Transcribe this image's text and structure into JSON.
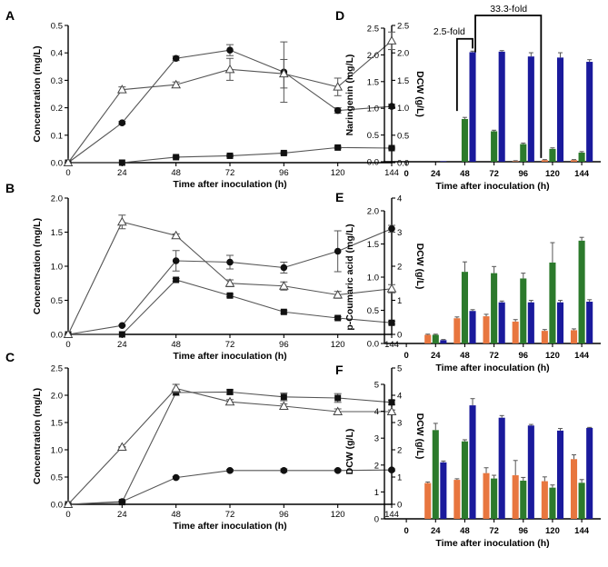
{
  "chart_data": [
    {
      "id": "A",
      "type": "line",
      "panel_label": "A",
      "xlabel": "Time after inoculation (h)",
      "ylabel": "Concentration (mg/L)",
      "y2label": "DCW (g/L)",
      "x": [
        0,
        24,
        48,
        72,
        96,
        120,
        144
      ],
      "x_ticks": [
        "0",
        "24",
        "48",
        "72",
        "96",
        "120",
        "144"
      ],
      "ylim": [
        0,
        0.5
      ],
      "y_ticks": [
        "0.0",
        "0.1",
        "0.2",
        "0.3",
        "0.4",
        "0.5"
      ],
      "y2lim": [
        0,
        2.5
      ],
      "y2_ticks": [
        "0.0",
        "0.5",
        "1.0",
        "1.5",
        "2.0",
        "2.5"
      ],
      "series": [
        {
          "name": "squares",
          "marker": "square",
          "axis": "left",
          "values": [
            0,
            0,
            0.02,
            0.025,
            0.035,
            0.055,
            0.053
          ],
          "errors": [
            0,
            0,
            0.003,
            0.003,
            0.004,
            0.004,
            0.003
          ]
        },
        {
          "name": "circles",
          "marker": "circle",
          "axis": "left",
          "values": [
            0,
            0.145,
            0.38,
            0.41,
            0.33,
            0.19,
            0.205
          ],
          "errors": [
            0,
            0.005,
            0.008,
            0.02,
            0.11,
            0.01,
            0.008
          ]
        },
        {
          "name": "triangles",
          "marker": "triangle",
          "axis": "right",
          "values": [
            0,
            1.33,
            1.42,
            1.7,
            1.62,
            1.38,
            2.22
          ],
          "errors": [
            0,
            0.05,
            0.05,
            0.2,
            0.26,
            0.16,
            0.16
          ]
        }
      ]
    },
    {
      "id": "B",
      "type": "line",
      "panel_label": "B",
      "xlabel": "Time after inoculation (h)",
      "ylabel": "Concentration (mg/L)",
      "y2label": "DCW (g/L)",
      "x": [
        0,
        24,
        48,
        72,
        96,
        120,
        144
      ],
      "x_ticks": [
        "0",
        "24",
        "48",
        "72",
        "96",
        "120",
        "144"
      ],
      "ylim": [
        0,
        2.0
      ],
      "y_ticks": [
        "0.0",
        "0.5",
        "1.0",
        "1.5",
        "2.0"
      ],
      "y2lim": [
        0,
        4
      ],
      "y2_ticks": [
        "0",
        "1",
        "2",
        "3",
        "4"
      ],
      "series": [
        {
          "name": "squares",
          "marker": "square",
          "axis": "left",
          "values": [
            0,
            0,
            0.8,
            0.57,
            0.33,
            0.24,
            0.17
          ],
          "errors": [
            0,
            0,
            0.02,
            0.02,
            0.02,
            0.02,
            0.02
          ]
        },
        {
          "name": "circles",
          "marker": "circle",
          "axis": "left",
          "values": [
            0,
            0.13,
            1.08,
            1.06,
            0.98,
            1.22,
            1.55
          ],
          "errors": [
            0,
            0.01,
            0.15,
            0.1,
            0.08,
            0.3,
            0.05
          ]
        },
        {
          "name": "triangles",
          "marker": "triangle",
          "axis": "right",
          "values": [
            0,
            3.3,
            2.9,
            1.5,
            1.42,
            1.16,
            1.34
          ],
          "errors": [
            0,
            0.2,
            0.05,
            0.1,
            0.12,
            0.1,
            0.12
          ]
        }
      ]
    },
    {
      "id": "C",
      "type": "line",
      "panel_label": "C",
      "xlabel": "Time after inoculation (h)",
      "ylabel": "Concentration (mg/L)",
      "y2label": "DCW (g/L)",
      "x": [
        0,
        24,
        48,
        72,
        96,
        120,
        144
      ],
      "x_ticks": [
        "0",
        "24",
        "48",
        "72",
        "96",
        "120",
        "144"
      ],
      "ylim": [
        0,
        2.5
      ],
      "y_ticks": [
        "0.0",
        "0.5",
        "1.0",
        "1.5",
        "2.0",
        "2.5"
      ],
      "y2lim": [
        0,
        5
      ],
      "y2_ticks": [
        "0",
        "1",
        "2",
        "3",
        "4",
        "5"
      ],
      "series": [
        {
          "name": "squares",
          "marker": "square",
          "axis": "left",
          "values": [
            0,
            0.04,
            2.05,
            2.06,
            1.97,
            1.95,
            1.87
          ],
          "errors": [
            0,
            0.01,
            0.05,
            0.04,
            0.07,
            0.08,
            0.04
          ]
        },
        {
          "name": "circles",
          "marker": "circle",
          "axis": "left",
          "values": [
            0,
            0.05,
            0.49,
            0.62,
            0.62,
            0.62,
            0.63
          ],
          "errors": [
            0,
            0.01,
            0.02,
            0.02,
            0.03,
            0.02,
            0.02
          ]
        },
        {
          "name": "triangles",
          "marker": "triangle",
          "axis": "right",
          "values": [
            0,
            2.1,
            4.25,
            3.76,
            3.6,
            3.4,
            3.4
          ],
          "errors": [
            0,
            0.02,
            0.15,
            0.08,
            0.08,
            0.1,
            0.06
          ]
        }
      ]
    },
    {
      "id": "D",
      "type": "bar",
      "panel_label": "D",
      "xlabel": "Time after inoculation (h)",
      "ylabel": "Naringenin (mg/L)",
      "categories": [
        "0",
        "24",
        "48",
        "72",
        "96",
        "120",
        "144"
      ],
      "ylim": [
        0,
        2.5
      ],
      "y_ticks": [
        "0.0",
        "0.5",
        "1.0",
        "1.5",
        "2.0",
        "2.5"
      ],
      "series": [
        {
          "name": "orange",
          "color": "#e8763f",
          "values": [
            0,
            0,
            0,
            0,
            0.01,
            0.03,
            0.03
          ],
          "errors": [
            0,
            0,
            0,
            0,
            0.01,
            0.01,
            0.01
          ]
        },
        {
          "name": "green",
          "color": "#2c7a2c",
          "values": [
            0,
            0,
            0.8,
            0.57,
            0.33,
            0.24,
            0.17
          ],
          "errors": [
            0,
            0,
            0.03,
            0.02,
            0.02,
            0.02,
            0.02
          ]
        },
        {
          "name": "blue",
          "color": "#1a1a9c",
          "values": [
            0,
            0.01,
            2.05,
            2.06,
            1.97,
            1.95,
            1.87
          ],
          "errors": [
            0,
            0,
            0.02,
            0.02,
            0.07,
            0.09,
            0.04
          ]
        }
      ],
      "annotations": [
        "2.5-fold",
        "33.3-fold"
      ]
    },
    {
      "id": "E",
      "type": "bar",
      "panel_label": "E",
      "xlabel": "Time after inoculation (h)",
      "ylabel": "p-Coumaric acid (mg/L)",
      "categories": [
        "0",
        "24",
        "48",
        "72",
        "96",
        "120",
        "144"
      ],
      "ylim": [
        0,
        2.0
      ],
      "y_ticks": [
        "0.0",
        "0.5",
        "1.0",
        "1.5",
        "2.0"
      ],
      "series": [
        {
          "name": "orange",
          "color": "#e8763f",
          "values": [
            0,
            0.13,
            0.38,
            0.41,
            0.33,
            0.19,
            0.2
          ],
          "errors": [
            0,
            0.01,
            0.02,
            0.03,
            0.03,
            0.02,
            0.02
          ]
        },
        {
          "name": "green",
          "color": "#2c7a2c",
          "values": [
            0,
            0.13,
            1.08,
            1.06,
            0.98,
            1.22,
            1.55
          ],
          "errors": [
            0,
            0.01,
            0.15,
            0.1,
            0.08,
            0.3,
            0.05
          ]
        },
        {
          "name": "blue",
          "color": "#1a1a9c",
          "values": [
            0,
            0.05,
            0.49,
            0.62,
            0.62,
            0.62,
            0.63
          ],
          "errors": [
            0,
            0.01,
            0.02,
            0.02,
            0.03,
            0.03,
            0.03
          ]
        }
      ]
    },
    {
      "id": "F",
      "type": "bar",
      "panel_label": "F",
      "xlabel": "Time after inoculation (h)",
      "ylabel": "DCW (g/L)",
      "categories": [
        "0",
        "24",
        "48",
        "72",
        "96",
        "120",
        "144"
      ],
      "ylim": [
        0,
        5
      ],
      "y_ticks": [
        "0",
        "1",
        "2",
        "3",
        "4",
        "5"
      ],
      "series": [
        {
          "name": "orange",
          "color": "#e8763f",
          "values": [
            0,
            1.33,
            1.45,
            1.7,
            1.62,
            1.4,
            2.22
          ],
          "errors": [
            0,
            0.04,
            0.04,
            0.2,
            0.55,
            0.16,
            0.16
          ]
        },
        {
          "name": "green",
          "color": "#2c7a2c",
          "values": [
            0,
            3.3,
            2.88,
            1.5,
            1.42,
            1.16,
            1.34
          ],
          "errors": [
            0,
            0.25,
            0.06,
            0.12,
            0.12,
            0.1,
            0.12
          ]
        },
        {
          "name": "blue",
          "color": "#1a1a9c",
          "values": [
            0,
            2.1,
            4.22,
            3.76,
            3.47,
            3.28,
            3.38
          ],
          "errors": [
            0,
            0.05,
            0.25,
            0.08,
            0.04,
            0.08,
            0.02
          ]
        }
      ]
    }
  ]
}
